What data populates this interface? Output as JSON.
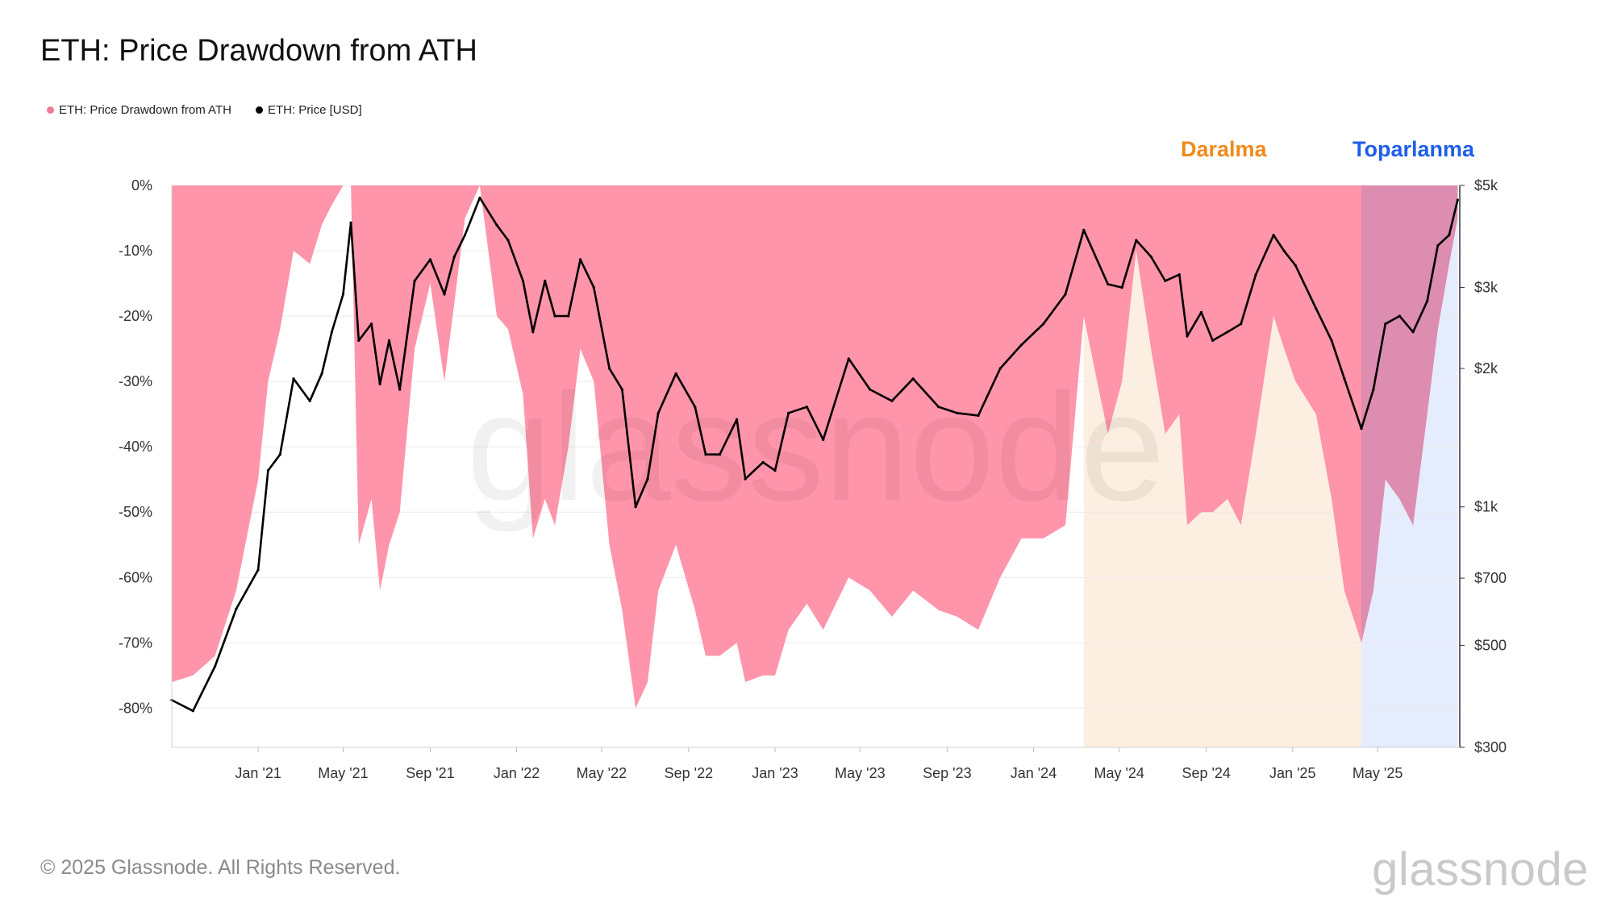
{
  "header": {
    "title": "ETH: Price Drawdown from ATH"
  },
  "legend": {
    "items": [
      {
        "label": "ETH: Price Drawdown from ATH",
        "color": "#f07a96"
      },
      {
        "label": "ETH: Price [USD]",
        "color": "#000000"
      }
    ]
  },
  "annotations": {
    "phase1": {
      "label": "Daralma",
      "color": "#f08a1c"
    },
    "phase2": {
      "label": "Toparlanma",
      "color": "#1f5ee8"
    }
  },
  "footer": {
    "copyright": "© 2025 Glassnode. All Rights Reserved.",
    "brand": "glassnode"
  },
  "colors": {
    "drawdown_fill": "#ff8fa6",
    "drawdown_secondary": "#ee7f98",
    "consolidation_shade": "#fcefe1",
    "recovery_shade": "#e4ecfe",
    "recovery_overlay": "#dd8db0",
    "price_line": "#000000",
    "grid": "#ececec"
  },
  "chart_data": {
    "type": "line",
    "title": "ETH: Price Drawdown from ATH",
    "x_ticks": [
      "Jan '21",
      "May '21",
      "Sep '21",
      "Jan '22",
      "May '22",
      "Sep '22",
      "Jan '23",
      "May '23",
      "Sep '23",
      "Jan '24",
      "May '24",
      "Sep '24",
      "Jan '25",
      "May '25"
    ],
    "x_tick_dates": [
      "2021-01-01",
      "2021-05-01",
      "2021-09-01",
      "2022-01-01",
      "2022-05-01",
      "2022-09-01",
      "2023-01-01",
      "2023-05-01",
      "2023-09-01",
      "2024-01-01",
      "2024-05-01",
      "2024-09-01",
      "2025-01-01",
      "2025-05-01"
    ],
    "x_range": [
      "2020-09-01",
      "2025-08-25"
    ],
    "left_axis": {
      "label": "",
      "ticks": [
        "0%",
        "-10%",
        "-20%",
        "-30%",
        "-40%",
        "-50%",
        "-60%",
        "-70%",
        "-80%"
      ],
      "tick_values": [
        0,
        -10,
        -20,
        -30,
        -40,
        -50,
        -60,
        -70,
        -80
      ],
      "range": [
        -86,
        0
      ]
    },
    "right_axis": {
      "label": "",
      "scale": "log",
      "ticks": [
        "$5k",
        "$3k",
        "$2k",
        "$1k",
        "$700",
        "$500",
        "$300"
      ],
      "tick_values": [
        5000,
        3000,
        2000,
        1000,
        700,
        500,
        300
      ],
      "range": [
        300,
        5000
      ]
    },
    "shaded_periods": [
      {
        "label": "Daralma",
        "start": "2024-03-12",
        "end": "2025-04-08"
      },
      {
        "label": "Toparlanma",
        "start": "2025-04-08",
        "end": "2025-08-22"
      }
    ],
    "series": [
      {
        "name": "ETH: Price Drawdown from ATH",
        "unit": "%",
        "x": [
          "2020-09-01",
          "2020-10-01",
          "2020-11-01",
          "2020-12-01",
          "2021-01-01",
          "2021-01-15",
          "2021-02-01",
          "2021-02-20",
          "2021-03-15",
          "2021-04-01",
          "2021-04-15",
          "2021-05-01",
          "2021-05-12",
          "2021-05-23",
          "2021-06-10",
          "2021-06-22",
          "2021-07-05",
          "2021-07-20",
          "2021-08-10",
          "2021-09-01",
          "2021-09-21",
          "2021-10-05",
          "2021-10-20",
          "2021-11-10",
          "2021-12-04",
          "2021-12-20",
          "2022-01-10",
          "2022-01-24",
          "2022-02-10",
          "2022-02-24",
          "2022-03-15",
          "2022-04-01",
          "2022-04-20",
          "2022-05-12",
          "2022-05-30",
          "2022-06-18",
          "2022-07-05",
          "2022-07-20",
          "2022-08-14",
          "2022-09-10",
          "2022-09-25",
          "2022-10-15",
          "2022-11-08",
          "2022-11-20",
          "2022-12-15",
          "2023-01-01",
          "2023-01-20",
          "2023-02-15",
          "2023-03-10",
          "2023-04-15",
          "2023-05-15",
          "2023-06-15",
          "2023-07-15",
          "2023-08-20",
          "2023-09-15",
          "2023-10-15",
          "2023-11-15",
          "2023-12-15",
          "2024-01-15",
          "2024-02-15",
          "2024-03-12",
          "2024-04-15",
          "2024-05-05",
          "2024-05-25",
          "2024-06-15",
          "2024-07-05",
          "2024-07-25",
          "2024-08-05",
          "2024-08-25",
          "2024-09-10",
          "2024-10-01",
          "2024-10-20",
          "2024-11-10",
          "2024-12-05",
          "2024-12-20",
          "2025-01-05",
          "2025-02-03",
          "2025-02-25",
          "2025-03-15",
          "2025-04-08",
          "2025-04-25",
          "2025-05-12",
          "2025-06-01",
          "2025-06-20",
          "2025-07-10",
          "2025-07-25",
          "2025-08-10",
          "2025-08-22"
        ],
        "values": [
          -76,
          -75,
          -72,
          -62,
          -45,
          -30,
          -22,
          -10,
          -12,
          -6,
          -3,
          0,
          0,
          -55,
          -48,
          -62,
          -55,
          -50,
          -25,
          -15,
          -30,
          -18,
          -5,
          0,
          -20,
          -22,
          -32,
          -54,
          -48,
          -52,
          -40,
          -25,
          -30,
          -55,
          -65,
          -80,
          -76,
          -62,
          -55,
          -65,
          -72,
          -72,
          -70,
          -76,
          -75,
          -75,
          -68,
          -64,
          -68,
          -60,
          -62,
          -66,
          -62,
          -65,
          -66,
          -68,
          -60,
          -54,
          -54,
          -52,
          -20,
          -38,
          -30,
          -10,
          -25,
          -38,
          -35,
          -52,
          -50,
          -50,
          -48,
          -52,
          -38,
          -20,
          -25,
          -30,
          -35,
          -48,
          -62,
          -70,
          -62,
          -45,
          -48,
          -52,
          -35,
          -22,
          -12,
          -5
        ]
      },
      {
        "name": "ETH: Price [USD]",
        "unit": "USD",
        "x": [
          "2020-09-01",
          "2020-10-01",
          "2020-11-01",
          "2020-12-01",
          "2021-01-01",
          "2021-01-15",
          "2021-02-01",
          "2021-02-20",
          "2021-03-15",
          "2021-04-01",
          "2021-04-15",
          "2021-05-01",
          "2021-05-12",
          "2021-05-23",
          "2021-06-10",
          "2021-06-22",
          "2021-07-05",
          "2021-07-20",
          "2021-08-10",
          "2021-09-01",
          "2021-09-21",
          "2021-10-05",
          "2021-10-20",
          "2021-11-10",
          "2021-12-04",
          "2021-12-20",
          "2022-01-10",
          "2022-01-24",
          "2022-02-10",
          "2022-02-24",
          "2022-03-15",
          "2022-04-01",
          "2022-04-20",
          "2022-05-12",
          "2022-05-30",
          "2022-06-18",
          "2022-07-05",
          "2022-07-20",
          "2022-08-14",
          "2022-09-10",
          "2022-09-25",
          "2022-10-15",
          "2022-11-08",
          "2022-11-20",
          "2022-12-15",
          "2023-01-01",
          "2023-01-20",
          "2023-02-15",
          "2023-03-10",
          "2023-04-15",
          "2023-05-15",
          "2023-06-15",
          "2023-07-15",
          "2023-08-20",
          "2023-09-15",
          "2023-10-15",
          "2023-11-15",
          "2023-12-15",
          "2024-01-15",
          "2024-02-15",
          "2024-03-12",
          "2024-04-15",
          "2024-05-05",
          "2024-05-25",
          "2024-06-15",
          "2024-07-05",
          "2024-07-25",
          "2024-08-05",
          "2024-08-25",
          "2024-09-10",
          "2024-10-01",
          "2024-10-20",
          "2024-11-10",
          "2024-12-05",
          "2024-12-20",
          "2025-01-05",
          "2025-02-03",
          "2025-02-25",
          "2025-03-15",
          "2025-04-08",
          "2025-04-25",
          "2025-05-12",
          "2025-06-01",
          "2025-06-20",
          "2025-07-10",
          "2025-07-25",
          "2025-08-10",
          "2025-08-22"
        ],
        "values": [
          380,
          360,
          450,
          600,
          730,
          1200,
          1300,
          1900,
          1700,
          1950,
          2400,
          2900,
          4150,
          2300,
          2500,
          1850,
          2300,
          1800,
          3100,
          3450,
          2900,
          3500,
          3900,
          4700,
          4100,
          3800,
          3100,
          2400,
          3100,
          2600,
          2600,
          3450,
          3000,
          2000,
          1800,
          1000,
          1150,
          1600,
          1950,
          1650,
          1300,
          1300,
          1550,
          1150,
          1250,
          1200,
          1600,
          1650,
          1400,
          2100,
          1800,
          1700,
          1900,
          1650,
          1600,
          1580,
          2000,
          2250,
          2500,
          2900,
          4000,
          3050,
          3000,
          3800,
          3500,
          3100,
          3200,
          2350,
          2650,
          2300,
          2400,
          2500,
          3200,
          3900,
          3600,
          3350,
          2700,
          2300,
          1900,
          1480,
          1800,
          2500,
          2600,
          2400,
          2800,
          3700,
          3900,
          4650
        ]
      }
    ],
    "grid": true,
    "legend_position": "top-left"
  }
}
